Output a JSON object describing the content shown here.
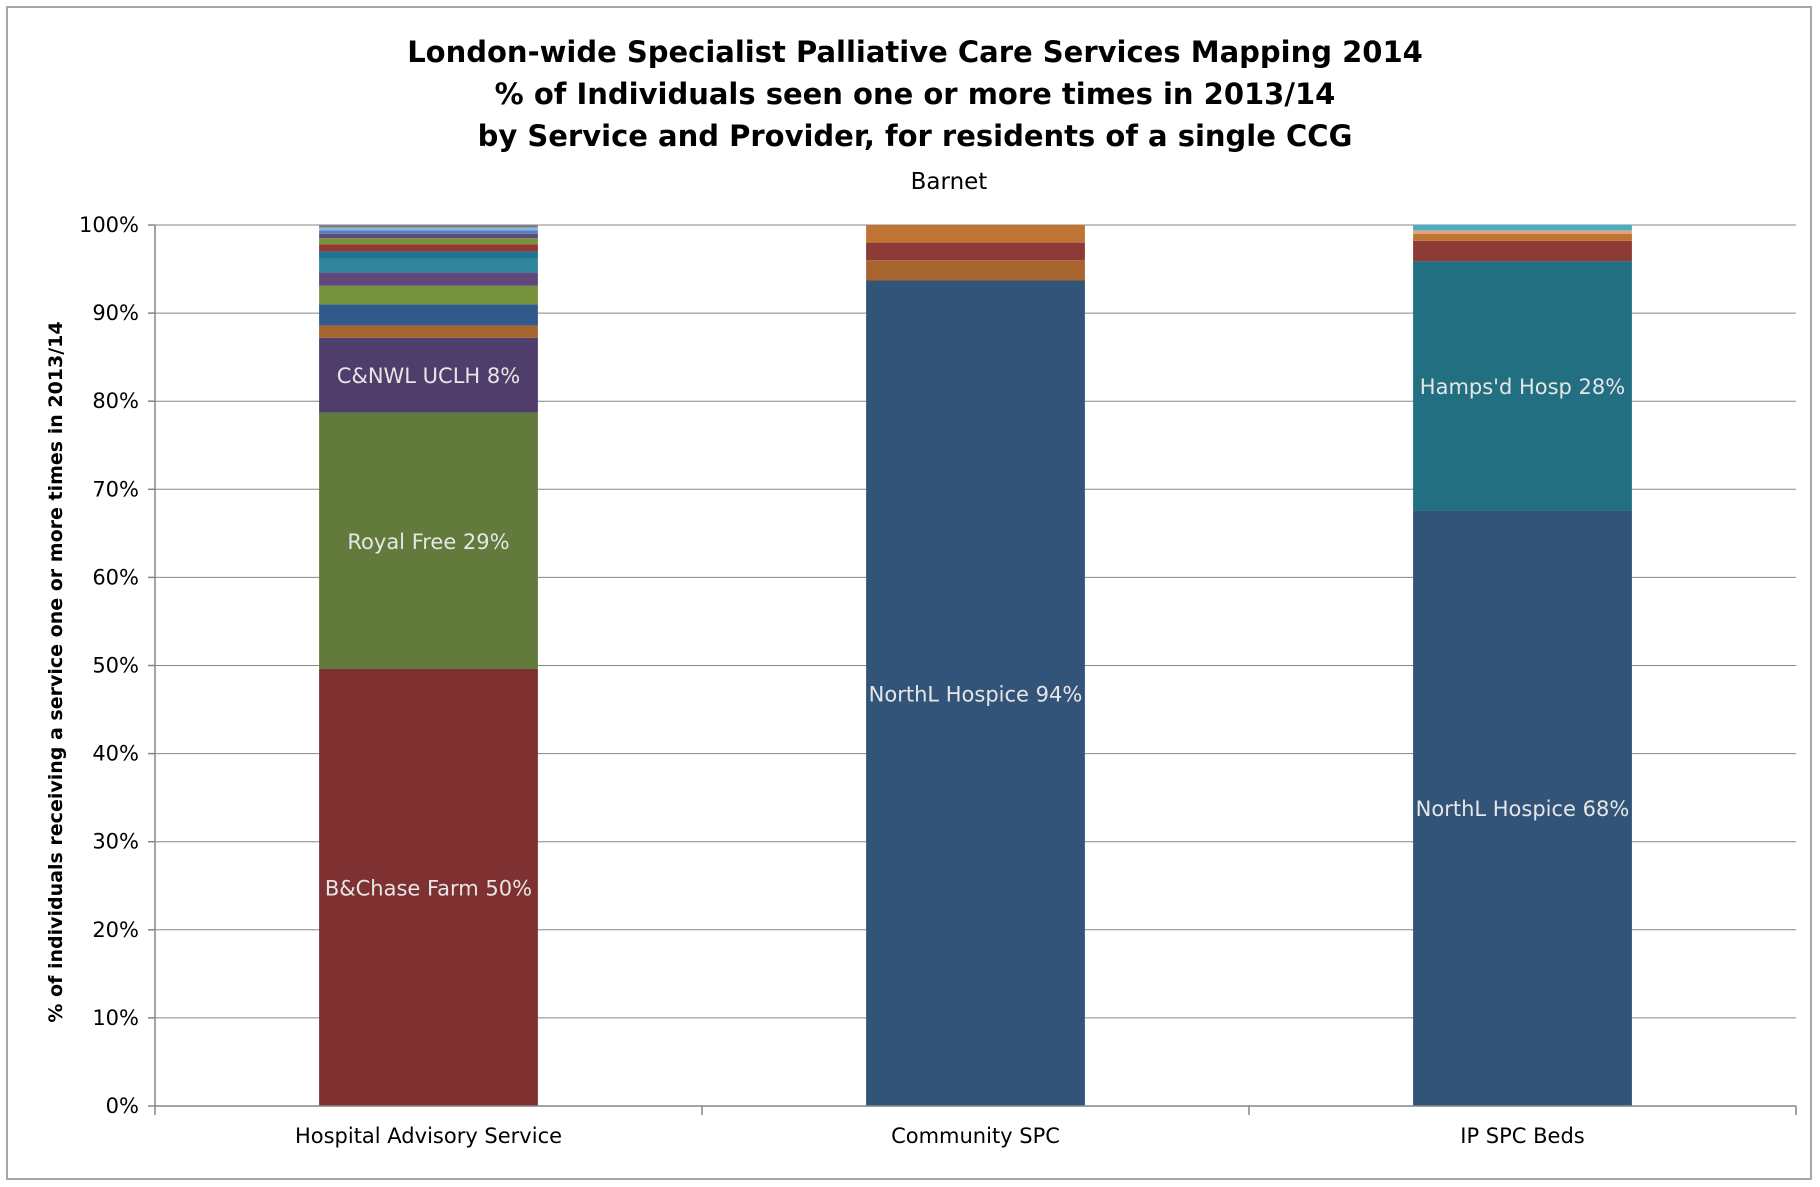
{
  "chart_data": {
    "type": "bar",
    "stacked": true,
    "title": [
      "London-wide Specialist Palliative Care Services Mapping 2014",
      "% of Individuals seen one or more times in 2013/14",
      "by Service and Provider, for residents of a single CCG"
    ],
    "subtitle": "Barnet",
    "xlabel": "",
    "ylabel": "% of individuals receiving a service one or more times in 2013/14",
    "ylim": [
      0,
      100
    ],
    "yticks": [
      "0%",
      "10%",
      "20%",
      "30%",
      "40%",
      "50%",
      "60%",
      "70%",
      "80%",
      "90%",
      "100%"
    ],
    "grid": true,
    "legend": "none",
    "categories": [
      "Hospital Advisory Service",
      "Community SPC",
      "IP SPC Beds"
    ],
    "stacks": [
      [
        {
          "value": 49.6,
          "color": "#7f3132",
          "label": "B&Chase Farm 50%"
        },
        {
          "value": 29.1,
          "color": "#627a3b",
          "label": "Royal Free 29%"
        },
        {
          "value": 8.5,
          "color": "#4f3d6b",
          "label": "C&NWL UCLH 8%"
        },
        {
          "value": 1.4,
          "color": "#a8642f",
          "label": ""
        },
        {
          "value": 2.4,
          "color": "#315a8a",
          "label": ""
        },
        {
          "value": 2.1,
          "color": "#76923c",
          "label": ""
        },
        {
          "value": 1.5,
          "color": "#5f497a",
          "label": ""
        },
        {
          "value": 1.6,
          "color": "#31859c",
          "label": ""
        },
        {
          "value": 0.8,
          "color": "#1f7391",
          "label": ""
        },
        {
          "value": 0.8,
          "color": "#953735",
          "label": ""
        },
        {
          "value": 0.7,
          "color": "#77933c",
          "label": ""
        },
        {
          "value": 0.5,
          "color": "#604a7b",
          "label": ""
        },
        {
          "value": 0.4,
          "color": "#4f81bd",
          "label": ""
        },
        {
          "value": 0.3,
          "color": "#8eb4e3",
          "label": ""
        },
        {
          "value": 0.3,
          "color": "#7f7f7f",
          "label": ""
        }
      ],
      [
        {
          "value": 93.7,
          "color": "#325479",
          "label": "NorthL Hospice 94%"
        },
        {
          "value": 2.3,
          "color": "#a8642f",
          "label": ""
        },
        {
          "value": 2.0,
          "color": "#8e3a37",
          "label": ""
        },
        {
          "value": 2.0,
          "color": "#bf7434",
          "label": ""
        }
      ],
      [
        {
          "value": 67.6,
          "color": "#325479",
          "label": "NorthL Hospice 68%"
        },
        {
          "value": 28.3,
          "color": "#236f82",
          "label": "Hamps'd Hosp 28%"
        },
        {
          "value": 2.3,
          "color": "#8e3a37",
          "label": ""
        },
        {
          "value": 0.8,
          "color": "#bf7434",
          "label": ""
        },
        {
          "value": 0.4,
          "color": "#d8a37a",
          "label": ""
        },
        {
          "value": 0.6,
          "color": "#4bacc6",
          "label": ""
        }
      ]
    ]
  }
}
